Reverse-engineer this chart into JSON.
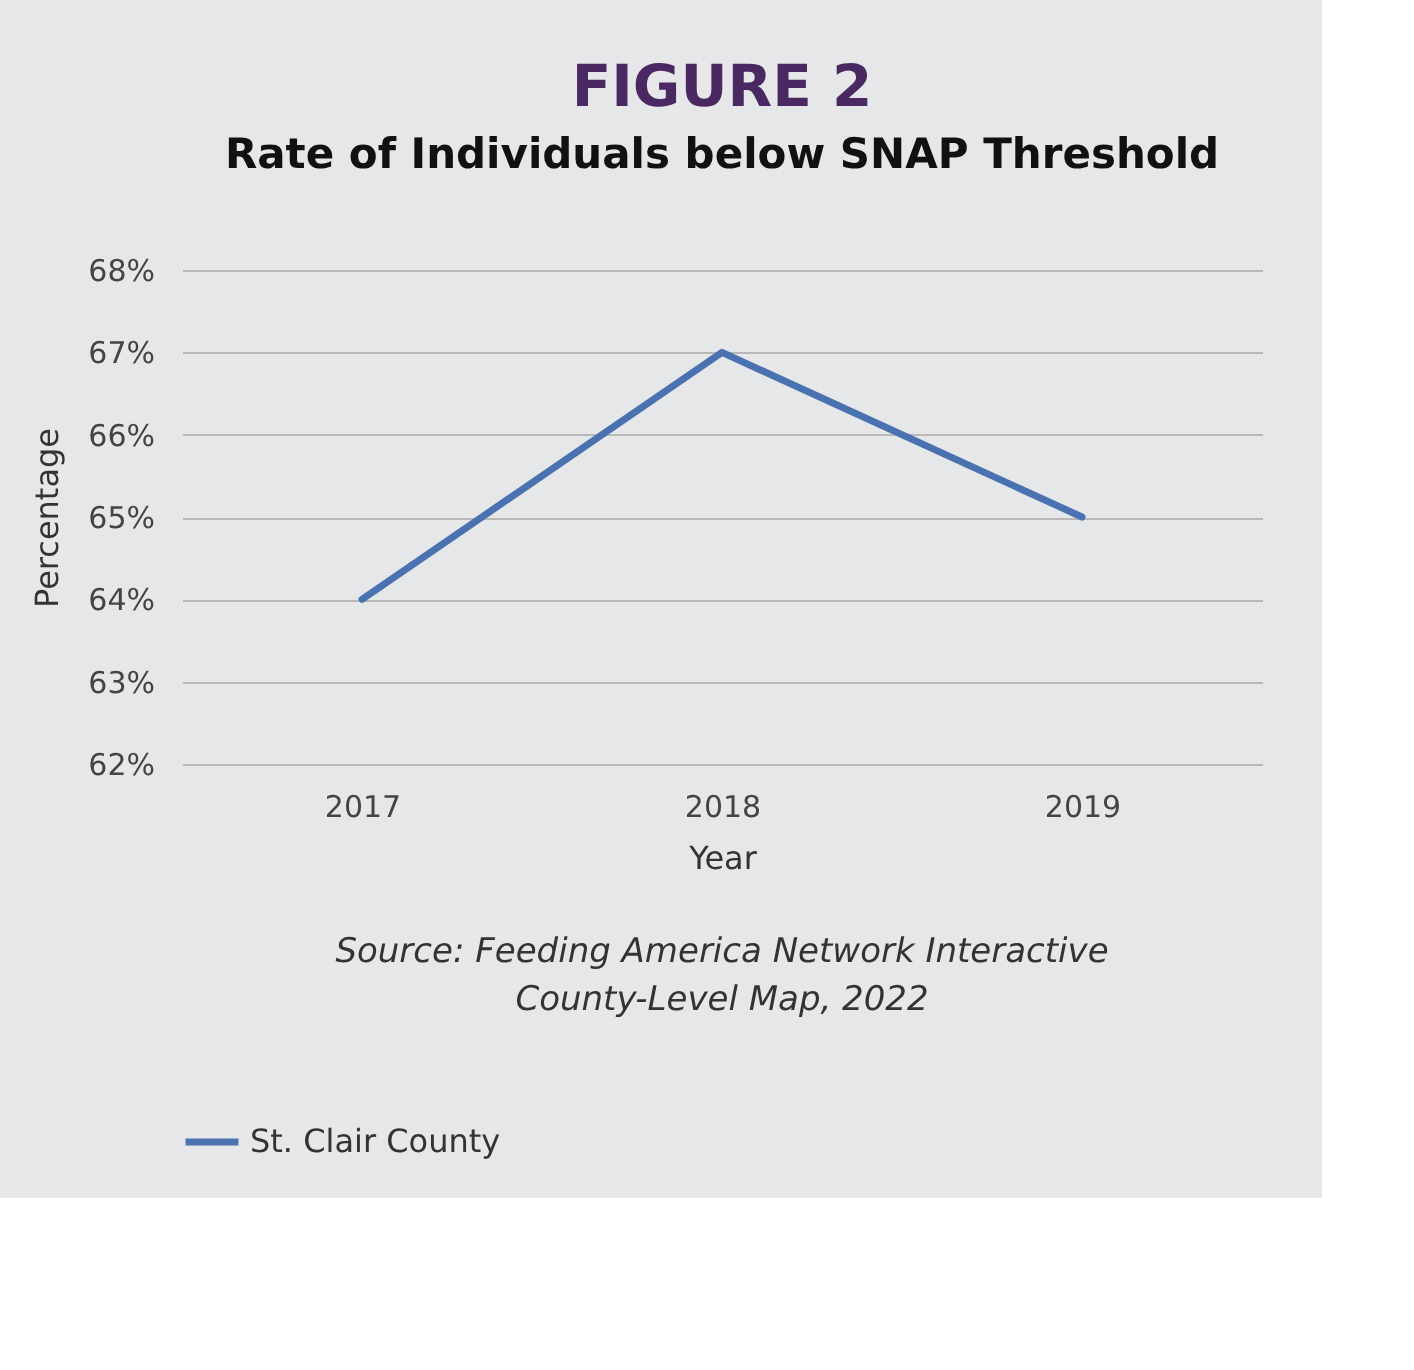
{
  "chart_data": {
    "type": "line",
    "title": "FIGURE 2",
    "subtitle": "Rate of Individuals below SNAP Threshold",
    "xlabel": "Year",
    "ylabel": "Percentage",
    "categories": [
      "2017",
      "2018",
      "2019"
    ],
    "series": [
      {
        "name": "St. Clair County",
        "color": "#4a72b0",
        "values": [
          64,
          67,
          65
        ]
      }
    ],
    "ylim": [
      62,
      68
    ],
    "yticks": [
      {
        "value": 62,
        "label": "62%"
      },
      {
        "value": 63,
        "label": "63%"
      },
      {
        "value": 64,
        "label": "64%"
      },
      {
        "value": 65,
        "label": "65%"
      },
      {
        "value": 66,
        "label": "66%"
      },
      {
        "value": 67,
        "label": "67%"
      },
      {
        "value": 68,
        "label": "68%"
      }
    ],
    "grid": "y",
    "legend": "bottom",
    "annotations": [
      "Source: Feeding America Network Interactive County-Level Map, 2022"
    ]
  }
}
